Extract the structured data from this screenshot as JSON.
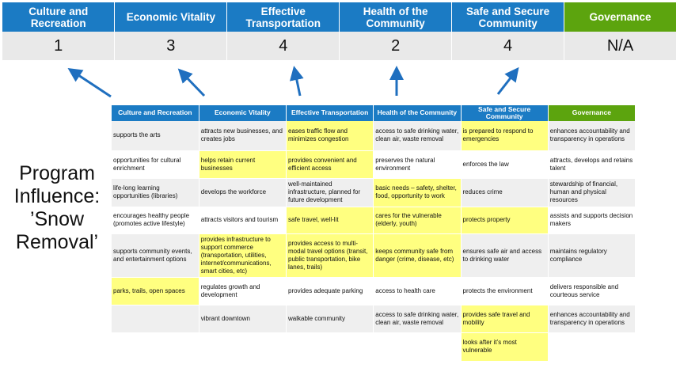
{
  "colors": {
    "header_blue": "#1b7bc4",
    "governance_green": "#5ca40e",
    "highlight": "#ffff80",
    "arrow": "#1f6fbf"
  },
  "scores": [
    {
      "category": "Culture and Recreation",
      "score": "1"
    },
    {
      "category": "Economic Vitality",
      "score": "3"
    },
    {
      "category": "Effective Transportation",
      "score": "4"
    },
    {
      "category": "Health of the Community",
      "score": "2"
    },
    {
      "category": "Safe and Secure Community",
      "score": "4"
    },
    {
      "category": "Governance",
      "score": "N/A"
    }
  ],
  "program_label": "Program Influence: ’Snow Removal’",
  "table": {
    "headers": [
      "Culture and Recreation",
      "Economic Vitality",
      "Effective Transportation",
      "Health of the Community",
      "Safe and Secure Community",
      "Governance"
    ],
    "rows": [
      [
        {
          "t": "supports the arts"
        },
        {
          "t": "attracts new businesses, and creates jobs"
        },
        {
          "t": "eases traffic flow and minimizes congestion",
          "h": true
        },
        {
          "t": "access to safe drinking water, clean air, waste removal"
        },
        {
          "t": "is prepared to respond to emergencies",
          "h": true
        },
        {
          "t": "enhances accountability and transparency in operations"
        }
      ],
      [
        {
          "t": "opportunities for cultural enrichment"
        },
        {
          "t": "helps retain current businesses",
          "h": true
        },
        {
          "t": "provides convenient and efficient access",
          "h": true
        },
        {
          "t": "preserves the natural environment"
        },
        {
          "t": "enforces the law"
        },
        {
          "t": "attracts, develops and retains talent"
        }
      ],
      [
        {
          "t": "life-long learning opportunities (libraries)"
        },
        {
          "t": "develops the workforce"
        },
        {
          "t": "well-maintained infrastructure, planned for future development"
        },
        {
          "t": "basic needs – safety, shelter, food, opportunity to work",
          "h": true
        },
        {
          "t": "reduces crime"
        },
        {
          "t": "stewardship of financial, human and physical resources"
        }
      ],
      [
        {
          "t": "encourages healthy people (promotes active lifestyle)"
        },
        {
          "t": "attracts visitors and tourism"
        },
        {
          "t": "safe travel, well-lit",
          "h": true
        },
        {
          "t": "cares for the vulnerable (elderly, youth)",
          "h": true
        },
        {
          "t": "protects property",
          "h": true
        },
        {
          "t": "assists and supports decision makers"
        }
      ],
      [
        {
          "t": "supports community events, and entertainment options"
        },
        {
          "t": "provides infrastructure to support commerce (transportation, utilities, internet/communications, smart cities, etc)",
          "h": true
        },
        {
          "t": "provides access to multi-modal travel options (transit, public transportation, bike lanes, trails)",
          "h": true
        },
        {
          "t": "keeps community safe from danger (crime, disease, etc)",
          "h": true
        },
        {
          "t": "ensures safe air and access to drinking water"
        },
        {
          "t": "maintains regulatory compliance"
        }
      ],
      [
        {
          "t": "parks, trails, open spaces",
          "h": true
        },
        {
          "t": "regulates growth and development"
        },
        {
          "t": "provides adequate parking"
        },
        {
          "t": "access to health care"
        },
        {
          "t": "protects the environment"
        },
        {
          "t": "delivers responsible and courteous service"
        }
      ],
      [
        {
          "t": ""
        },
        {
          "t": "vibrant downtown"
        },
        {
          "t": "walkable community"
        },
        {
          "t": "access to safe drinking water, clean air, waste removal"
        },
        {
          "t": "provides safe travel and mobility",
          "h": true
        },
        {
          "t": "enhances accountability and transparency in operations"
        }
      ],
      [
        {
          "t": ""
        },
        {
          "t": ""
        },
        {
          "t": ""
        },
        {
          "t": ""
        },
        {
          "t": "looks after it’s most vulnerable",
          "h": true
        },
        {
          "t": ""
        }
      ]
    ]
  }
}
